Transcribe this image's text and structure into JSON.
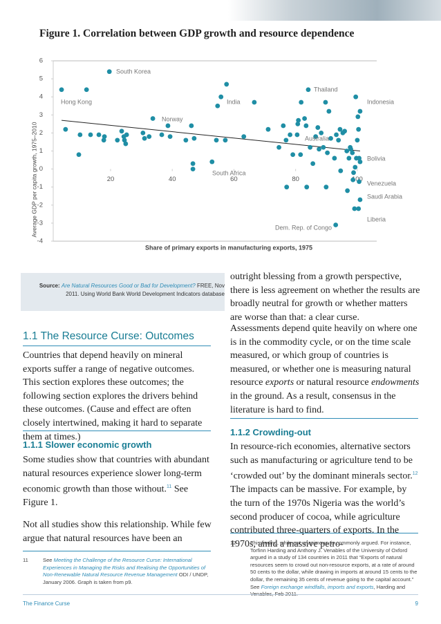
{
  "chart_data": {
    "type": "scatter",
    "title": "Figure 1. Correlation between GDP growth and resource dependence",
    "x_label": "Share of primary exports in manufacturing exports, 1975",
    "y_label": "Average GDP per capita growth, 1975–2010",
    "color": "#1f8ea5",
    "xlim": [
      1.4,
      106.3
    ],
    "ylim": [
      -4,
      6
    ],
    "xticks": [
      20,
      40,
      60,
      80,
      100
    ],
    "yticks": [
      6,
      5,
      4,
      3,
      2,
      1,
      0,
      -1,
      -2,
      -3,
      -4
    ],
    "x": [
      4.1,
      5.4,
      9.7,
      10.1,
      12.2,
      13.5,
      16.2,
      17.8,
      18.0,
      19.6,
      22.2,
      23.6,
      24.3,
      24.5,
      24.9,
      25.2,
      30.5,
      31.0,
      32.5,
      33.7,
      36.6,
      38.6,
      39.3,
      44.4,
      46.2,
      46.7,
      46.7,
      47.1,
      52.9,
      54.3,
      54.7,
      55.8,
      57.2,
      57.6,
      63.2,
      66.6,
      71.1,
      74.6,
      76.0,
      76.9,
      77.1,
      78.2,
      79.1,
      80.5,
      80.7,
      80.9,
      81.6,
      81.8,
      82.9,
      83.4,
      83.6,
      84.1,
      84.7,
      85.6,
      86.5,
      87.2,
      87.6,
      88.3,
      89.0,
      89.7,
      89.9,
      90.3,
      90.8,
      91.4,
      92.6,
      93.0,
      93.2,
      93.9,
      94.4,
      94.6,
      95.3,
      95.9,
      96.6,
      96.8,
      97.3,
      97.7,
      97.9,
      98.4,
      98.6,
      98.8,
      99.1,
      99.3,
      99.5,
      99.7,
      100.0,
      100.2,
      100.4,
      100.4,
      100.6,
      100.6,
      100.9,
      100.9,
      100.9
    ],
    "y": [
      4.4,
      2.2,
      0.8,
      1.9,
      4.4,
      1.9,
      1.9,
      1.6,
      1.8,
      5.4,
      1.6,
      2.1,
      1.8,
      1.6,
      1.4,
      1.9,
      2.0,
      1.7,
      1.8,
      2.8,
      1.9,
      2.4,
      1.8,
      1.6,
      2.4,
      0.3,
      0.0,
      1.7,
      0.4,
      1.6,
      3.5,
      4.0,
      1.6,
      4.7,
      1.8,
      3.7,
      2.2,
      1.2,
      2.4,
      1.6,
      -1.0,
      1.9,
      0.8,
      1.9,
      2.5,
      2.7,
      0.8,
      3.7,
      2.8,
      2.4,
      -1.0,
      4.4,
      1.2,
      0.3,
      1.8,
      2.3,
      1.1,
      2.0,
      1.2,
      3.7,
      -1.0,
      0.9,
      3.2,
      1.7,
      0.6,
      -3.1,
      1.9,
      1.6,
      2.2,
      -0.1,
      2.0,
      2.1,
      1.0,
      -1.2,
      0.6,
      1.2,
      1.1,
      0.9,
      -0.6,
      -0.2,
      -2.2,
      0.1,
      4.0,
      0.6,
      1.6,
      2.9,
      2.2,
      -2.2,
      0.6,
      -0.7,
      3.2,
      -1.7,
      0.4
    ],
    "trendline": {
      "x": [
        4.1,
        100.9
      ],
      "y": [
        2.7,
        1.0
      ]
    },
    "annotations": [
      "South Korea",
      "Hong Kong",
      "Norway",
      "India",
      "Thailand",
      "Indonesia",
      "Australia",
      "Bolivia",
      "South Africa",
      "Venezuela",
      "Saudi Arabia",
      "Liberia",
      "Dem. Rep. of Congo"
    ]
  },
  "document": {
    "source": {
      "label": "Source:",
      "title": "Are Natural Resources Good or Bad for Development?",
      "text": "FREE, Nov 2011. Using World Bank World Development Indicators database"
    },
    "left": {
      "heading": "1.1 The Resource Curse: Outcomes",
      "para1": "Countries that depend heavily on mineral exports suffer a range of negative outcomes. This section explores these outcomes; the following section explores the drivers behind these outcomes. (Cause and effect are often closely intertwined, making it hard to separate them at times.)",
      "subheading": "1.1.1 Slower economic growth",
      "para2": [
        "Some studies show that countries with abundant natural resources experience slower long-term economic growth than those without.",
        "11",
        " See Figure 1."
      ],
      "para3": "Not all studies show this relationship. While few argue that natural resources have been an"
    },
    "right": {
      "para1": "outright blessing from a growth perspective, there is less agreement on whether the results are broadly neutral for growth or whether matters are worse than that: a clear curse.",
      "para2": [
        "Assessments depend quite heavily on where one is in the commodity cycle, or on the time scale measured, or which group of countries is measured, or whether one is measuring natural resource ",
        "exports",
        " or natural resource ",
        "endowments",
        " in the ground. As a result, consensus in the literature is hard to find."
      ],
      "subheading": "1.1.2 Crowding-out",
      "para3": [
        "In resource-rich economies, alternative sectors such as manufacturing or agriculture tend to be ‘crowded out’ by the dominant minerals sector.",
        "12",
        " The impacts can be massive. For example, by the turn of the 1970s Nigeria was the world’s second producer of cocoa, while agriculture contributed three-quarters of exports. In the 1970s, amid a massive petro-"
      ]
    },
    "footnotes": [
      {
        "number": "11",
        "segments": [
          "See ",
          "Meeting the Challenge of the Resource Curse: International Experiences in Managing the Risks and Realising the Opportunities of Non-Renewable Natural Resource Revenue Management",
          " ODI / UNDP, January 2006. Graph is taken from p9."
        ]
      },
      {
        "number": "12",
        "segments": [
          "This finding, while not unanimous, is commonly argued. For instance, Torfinn Harding and Anthony J. Venables of the University of Oxford argued in a study of 134 countries in 2011 that “Exports of natural resources seem to crowd out non-resource exports, at a rate of around 50 cents to the dollar, while drawing in imports at around 15 cents to the dollar, the remaining 35 cents of revenue going to the capital account.” See ",
          "Foreign exchange windfalls, imports and exports",
          ", Harding and Venables, Feb 2011."
        ]
      }
    ],
    "footer": {
      "left": "The Finance Curse",
      "page": "9"
    }
  }
}
